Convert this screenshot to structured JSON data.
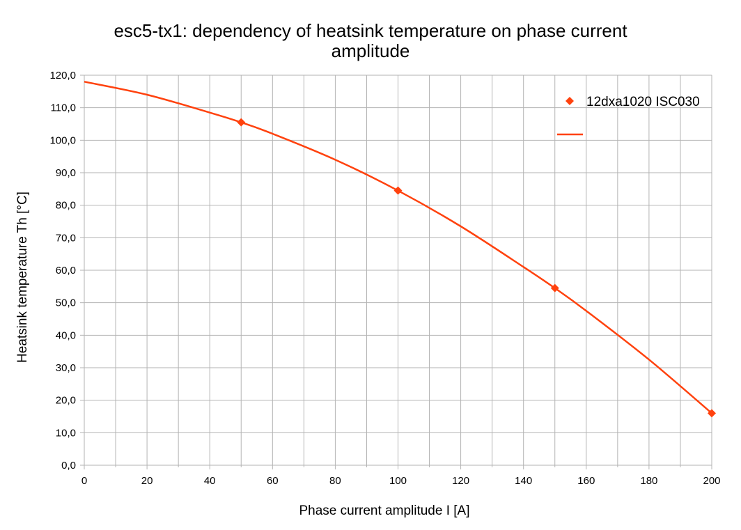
{
  "chart_data": {
    "type": "scatter",
    "title_lines": [
      "esc5-tx1: dependency of heatsink temperature on phase current",
      "amplitude"
    ],
    "xlabel": "Phase current amplitude I [A]",
    "ylabel": "Heatsink temperature Th [°C]",
    "xlim": [
      0,
      200
    ],
    "ylim": [
      0,
      120
    ],
    "x_ticks": [
      "0",
      "20",
      "40",
      "60",
      "80",
      "100",
      "120",
      "140",
      "160",
      "180",
      "200"
    ],
    "y_ticks": [
      "0,0",
      "10,0",
      "20,0",
      "30,0",
      "40,0",
      "50,0",
      "60,0",
      "70,0",
      "80,0",
      "90,0",
      "100,0",
      "110,0",
      "120,0"
    ],
    "grid": true,
    "legend_position": "top-right",
    "series": [
      {
        "name": "12dxa1020 ISC030",
        "marker": "diamond",
        "color": "#ff420e",
        "x": [
          50,
          100,
          150,
          200
        ],
        "y": [
          105.5,
          84.5,
          54.5,
          16.0
        ]
      }
    ],
    "trendline": {
      "type": "polynomial-2",
      "color": "#ff420e",
      "name": "",
      "x": [
        0,
        20,
        40,
        50,
        60,
        80,
        100,
        120,
        140,
        150,
        160,
        180,
        200
      ],
      "y": [
        118.0,
        114.0,
        108.5,
        105.5,
        102.0,
        94.0,
        84.5,
        73.5,
        61.0,
        54.5,
        47.5,
        32.5,
        16.0
      ]
    },
    "colors": {
      "grid": "#b3b3b3",
      "series": "#ff420e"
    }
  }
}
